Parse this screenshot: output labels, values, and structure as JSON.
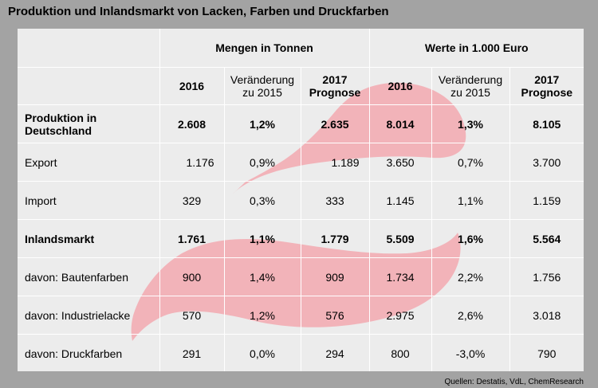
{
  "title": "Produktion und Inlandsmarkt von Lacken, Farben und Druckfarben",
  "groups": {
    "mengen": "Mengen in Tonnen",
    "werte": "Werte in 1.000 Euro"
  },
  "columns": {
    "y2016_a": "2016",
    "change_a": "Veränderung zu 2015",
    "forecast_a": "2017 Prognose",
    "y2016_b": "2016",
    "change_b": "Veränderung zu 2015",
    "forecast_b": "2017 Prognose"
  },
  "rows": [
    {
      "label": "Produktion in Deutschland",
      "bold": true,
      "m2016": "2.608",
      "mchg": "1,2%",
      "m2017": "2.635",
      "w2016": "8.014",
      "wchg": "1,3%",
      "w2017": "8.105"
    },
    {
      "label": "Export",
      "bold": false,
      "m2016": "1.176",
      "mchg": "0,9%",
      "m2017": "1.189",
      "w2016": "3.650",
      "wchg": "0,7%",
      "w2017": "3.700"
    },
    {
      "label": "Import",
      "bold": false,
      "m2016": "329",
      "mchg": "0,3%",
      "m2017": "333",
      "w2016": "1.145",
      "wchg": "1,1%",
      "w2017": "1.159"
    },
    {
      "label": "Inlandsmarkt",
      "bold": true,
      "m2016": "1.761",
      "mchg": "1,1%",
      "m2017": "1.779",
      "w2016": "5.509",
      "wchg": "1,6%",
      "w2017": "5.564"
    },
    {
      "label": "davon: Bautenfarben",
      "bold": false,
      "m2016": "900",
      "mchg": "1,4%",
      "m2017": "909",
      "w2016": "1.734",
      "wchg": "2,2%",
      "w2017": "1.756"
    },
    {
      "label": "davon: Industrielacke",
      "bold": false,
      "m2016": "570",
      "mchg": "1,2%",
      "m2017": "576",
      "w2016": "2.975",
      "wchg": "2,6%",
      "w2017": "3.018"
    },
    {
      "label": "davon: Druckfarben",
      "bold": false,
      "m2016": "291",
      "mchg": "0,0%",
      "m2017": "294",
      "w2016": "800",
      "wchg": "-3,0%",
      "w2017": "790"
    }
  ],
  "source": "Quellen: Destatis, VdL, ChemResearch",
  "colors": {
    "background": "#a3a3a3",
    "table": "#ececec",
    "swirl": "#f4a0a8"
  }
}
